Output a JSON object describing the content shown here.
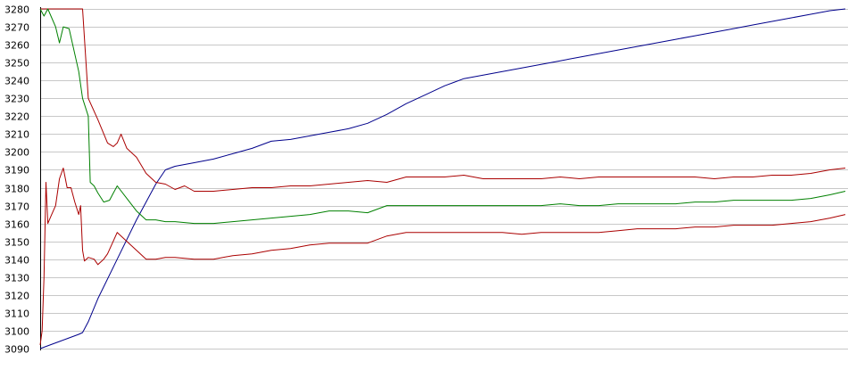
{
  "chart_data": {
    "type": "line",
    "title": "",
    "xlabel": "",
    "ylabel": "",
    "ylim": [
      3090,
      3280
    ],
    "yticks": [
      3090,
      3100,
      3110,
      3120,
      3130,
      3140,
      3150,
      3160,
      3170,
      3180,
      3190,
      3200,
      3210,
      3220,
      3230,
      3240,
      3250,
      3260,
      3270,
      3280
    ],
    "grid": true,
    "legend": "none",
    "series": [
      {
        "color": "#00008b",
        "points": [
          [
            0,
            3090
          ],
          [
            5,
            3092
          ],
          [
            10,
            3094
          ],
          [
            15,
            3096
          ],
          [
            20,
            3098
          ],
          [
            22,
            3099
          ],
          [
            25,
            3105
          ],
          [
            30,
            3118
          ],
          [
            40,
            3140
          ],
          [
            50,
            3162
          ],
          [
            60,
            3182
          ],
          [
            65,
            3190
          ],
          [
            70,
            3192
          ],
          [
            80,
            3194
          ],
          [
            90,
            3196
          ],
          [
            100,
            3199
          ],
          [
            110,
            3202
          ],
          [
            120,
            3206
          ],
          [
            130,
            3207
          ],
          [
            140,
            3209
          ],
          [
            150,
            3211
          ],
          [
            160,
            3213
          ],
          [
            170,
            3216
          ],
          [
            180,
            3221
          ],
          [
            190,
            3227
          ],
          [
            200,
            3232
          ],
          [
            210,
            3237
          ],
          [
            220,
            3241
          ],
          [
            230,
            3243
          ],
          [
            240,
            3245
          ],
          [
            250,
            3247
          ],
          [
            260,
            3249
          ],
          [
            270,
            3251
          ],
          [
            280,
            3253
          ],
          [
            290,
            3255
          ],
          [
            300,
            3257
          ],
          [
            310,
            3259
          ],
          [
            320,
            3261
          ],
          [
            330,
            3263
          ],
          [
            340,
            3265
          ],
          [
            350,
            3267
          ],
          [
            360,
            3269
          ],
          [
            370,
            3271
          ],
          [
            380,
            3273
          ],
          [
            390,
            3275
          ],
          [
            400,
            3277
          ],
          [
            410,
            3279
          ],
          [
            418,
            3280
          ]
        ]
      },
      {
        "color": "#aa0000",
        "points": [
          [
            0,
            3280
          ],
          [
            5,
            3280
          ],
          [
            10,
            3280
          ],
          [
            15,
            3280
          ],
          [
            20,
            3280
          ],
          [
            22,
            3280
          ],
          [
            25,
            3230
          ],
          [
            30,
            3218
          ],
          [
            35,
            3205
          ],
          [
            38,
            3203
          ],
          [
            40,
            3205
          ],
          [
            42,
            3210
          ],
          [
            45,
            3202
          ],
          [
            50,
            3197
          ],
          [
            55,
            3188
          ],
          [
            60,
            3183
          ],
          [
            65,
            3182
          ],
          [
            70,
            3179
          ],
          [
            75,
            3181
          ],
          [
            80,
            3178
          ],
          [
            90,
            3178
          ],
          [
            100,
            3179
          ],
          [
            110,
            3180
          ],
          [
            120,
            3180
          ],
          [
            130,
            3181
          ],
          [
            140,
            3181
          ],
          [
            150,
            3182
          ],
          [
            160,
            3183
          ],
          [
            170,
            3184
          ],
          [
            180,
            3183
          ],
          [
            190,
            3186
          ],
          [
            200,
            3186
          ],
          [
            210,
            3186
          ],
          [
            220,
            3187
          ],
          [
            230,
            3185
          ],
          [
            240,
            3185
          ],
          [
            250,
            3185
          ],
          [
            260,
            3185
          ],
          [
            270,
            3186
          ],
          [
            280,
            3185
          ],
          [
            290,
            3186
          ],
          [
            300,
            3186
          ],
          [
            310,
            3186
          ],
          [
            320,
            3186
          ],
          [
            330,
            3186
          ],
          [
            340,
            3186
          ],
          [
            350,
            3185
          ],
          [
            360,
            3186
          ],
          [
            370,
            3186
          ],
          [
            380,
            3187
          ],
          [
            390,
            3187
          ],
          [
            400,
            3188
          ],
          [
            410,
            3190
          ],
          [
            418,
            3191
          ]
        ]
      },
      {
        "color": "#008000",
        "points": [
          [
            0,
            3280
          ],
          [
            2,
            3276
          ],
          [
            4,
            3280
          ],
          [
            8,
            3270
          ],
          [
            10,
            3261
          ],
          [
            12,
            3270
          ],
          [
            15,
            3269
          ],
          [
            20,
            3245
          ],
          [
            22,
            3230
          ],
          [
            25,
            3220
          ],
          [
            26,
            3183
          ],
          [
            28,
            3181
          ],
          [
            30,
            3177
          ],
          [
            33,
            3172
          ],
          [
            36,
            3173
          ],
          [
            38,
            3177
          ],
          [
            40,
            3181
          ],
          [
            45,
            3174
          ],
          [
            50,
            3167
          ],
          [
            55,
            3162
          ],
          [
            60,
            3162
          ],
          [
            65,
            3161
          ],
          [
            70,
            3161
          ],
          [
            80,
            3160
          ],
          [
            90,
            3160
          ],
          [
            100,
            3161
          ],
          [
            110,
            3162
          ],
          [
            120,
            3163
          ],
          [
            130,
            3164
          ],
          [
            140,
            3165
          ],
          [
            150,
            3167
          ],
          [
            160,
            3167
          ],
          [
            170,
            3166
          ],
          [
            180,
            3170
          ],
          [
            190,
            3170
          ],
          [
            200,
            3170
          ],
          [
            210,
            3170
          ],
          [
            220,
            3170
          ],
          [
            230,
            3170
          ],
          [
            240,
            3170
          ],
          [
            250,
            3170
          ],
          [
            260,
            3170
          ],
          [
            270,
            3171
          ],
          [
            280,
            3170
          ],
          [
            290,
            3170
          ],
          [
            300,
            3171
          ],
          [
            310,
            3171
          ],
          [
            320,
            3171
          ],
          [
            330,
            3171
          ],
          [
            340,
            3172
          ],
          [
            350,
            3172
          ],
          [
            360,
            3173
          ],
          [
            370,
            3173
          ],
          [
            380,
            3173
          ],
          [
            390,
            3173
          ],
          [
            400,
            3174
          ],
          [
            410,
            3176
          ],
          [
            418,
            3178
          ]
        ]
      },
      {
        "color": "#aa0000",
        "points": [
          [
            0,
            3092
          ],
          [
            1,
            3100
          ],
          [
            2,
            3130
          ],
          [
            3,
            3183
          ],
          [
            4,
            3160
          ],
          [
            6,
            3165
          ],
          [
            8,
            3170
          ],
          [
            10,
            3185
          ],
          [
            12,
            3191
          ],
          [
            14,
            3180
          ],
          [
            16,
            3180
          ],
          [
            18,
            3172
          ],
          [
            20,
            3165
          ],
          [
            21,
            3170
          ],
          [
            22,
            3145
          ],
          [
            23,
            3139
          ],
          [
            25,
            3141
          ],
          [
            28,
            3140
          ],
          [
            30,
            3137
          ],
          [
            33,
            3140
          ],
          [
            35,
            3143
          ],
          [
            40,
            3155
          ],
          [
            45,
            3150
          ],
          [
            50,
            3145
          ],
          [
            55,
            3140
          ],
          [
            60,
            3140
          ],
          [
            65,
            3141
          ],
          [
            70,
            3141
          ],
          [
            80,
            3140
          ],
          [
            90,
            3140
          ],
          [
            100,
            3142
          ],
          [
            110,
            3143
          ],
          [
            120,
            3145
          ],
          [
            130,
            3146
          ],
          [
            140,
            3148
          ],
          [
            150,
            3149
          ],
          [
            160,
            3149
          ],
          [
            170,
            3149
          ],
          [
            180,
            3153
          ],
          [
            190,
            3155
          ],
          [
            200,
            3155
          ],
          [
            210,
            3155
          ],
          [
            220,
            3155
          ],
          [
            230,
            3155
          ],
          [
            240,
            3155
          ],
          [
            250,
            3154
          ],
          [
            260,
            3155
          ],
          [
            270,
            3155
          ],
          [
            280,
            3155
          ],
          [
            290,
            3155
          ],
          [
            300,
            3156
          ],
          [
            310,
            3157
          ],
          [
            320,
            3157
          ],
          [
            330,
            3157
          ],
          [
            340,
            3158
          ],
          [
            350,
            3158
          ],
          [
            360,
            3159
          ],
          [
            370,
            3159
          ],
          [
            380,
            3159
          ],
          [
            390,
            3160
          ],
          [
            400,
            3161
          ],
          [
            410,
            3163
          ],
          [
            418,
            3165
          ]
        ]
      }
    ]
  }
}
